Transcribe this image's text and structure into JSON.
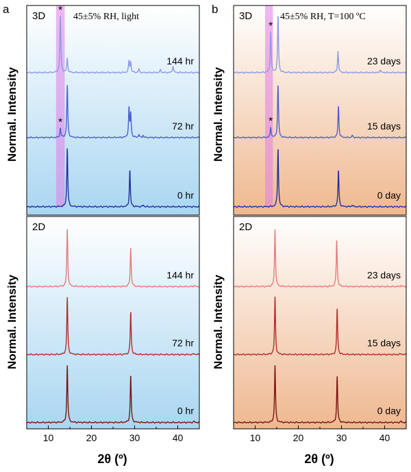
{
  "figure": {
    "panel_letters": [
      "a",
      "b"
    ],
    "xlabel": "2θ (º)",
    "ylabel": "Normal. Intensity",
    "peak_marker": "*"
  },
  "chart_data": [
    {
      "type": "line",
      "panel": "a",
      "subplot": "top",
      "sample": "3D",
      "condition": "45±5% RH, light",
      "xlim": [
        5,
        45
      ],
      "xticks": [
        10,
        20,
        30,
        40
      ],
      "ylabel": "Normal. Intensity",
      "highlight_band": [
        11.8,
        13.8
      ],
      "series": [
        {
          "name": "0 hr",
          "color": "#1f2f9c",
          "baseline": 0.04,
          "height": 0.28,
          "peaks": [
            [
              14.4,
              1.0
            ],
            [
              28.9,
              0.62
            ],
            [
              32.0,
              0.03
            ]
          ]
        },
        {
          "name": "72 hr",
          "color": "#4a5fd0",
          "baseline": 0.37,
          "height": 0.25,
          "peaks": [
            [
              12.8,
              0.18
            ],
            [
              14.4,
              1.0
            ],
            [
              28.7,
              0.55
            ],
            [
              29.1,
              0.45
            ],
            [
              31.0,
              0.06
            ],
            [
              32.0,
              0.04
            ]
          ],
          "star": 12.8
        },
        {
          "name": "144 hr",
          "color": "#8e99e6",
          "baseline": 0.68,
          "height": 0.27,
          "peaks": [
            [
              12.8,
              1.0
            ],
            [
              14.4,
              0.25
            ],
            [
              28.7,
              0.2
            ],
            [
              29.1,
              0.18
            ],
            [
              31.0,
              0.06
            ],
            [
              36.0,
              0.05
            ],
            [
              38.9,
              0.12
            ]
          ],
          "star": 12.8
        }
      ]
    },
    {
      "type": "line",
      "panel": "b",
      "subplot": "top",
      "sample": "3D",
      "condition": "45±5% RH, T=100 ºC",
      "xlim": [
        5,
        45
      ],
      "xticks": [
        10,
        20,
        30,
        40
      ],
      "ylabel": "Normal. Intensity",
      "highlight_band": [
        12.3,
        14.1
      ],
      "series": [
        {
          "name": "0 day",
          "color": "#1f2f9c",
          "baseline": 0.04,
          "height": 0.28,
          "peaks": [
            [
              15.3,
              1.0
            ],
            [
              29.3,
              0.62
            ],
            [
              32.5,
              0.03
            ]
          ]
        },
        {
          "name": "15 days",
          "color": "#4a5fd0",
          "baseline": 0.37,
          "height": 0.25,
          "peaks": [
            [
              13.6,
              0.2
            ],
            [
              15.3,
              1.0
            ],
            [
              29.3,
              0.6
            ],
            [
              32.5,
              0.04
            ]
          ],
          "star": 13.6
        },
        {
          "name": "23 days",
          "color": "#8e99e6",
          "baseline": 0.68,
          "height": 0.27,
          "peaks": [
            [
              13.6,
              0.72
            ],
            [
              15.3,
              1.0
            ],
            [
              29.2,
              0.38
            ],
            [
              39.0,
              0.05
            ]
          ],
          "star": 13.6
        }
      ]
    },
    {
      "type": "line",
      "panel": "a",
      "subplot": "bottom",
      "sample": "2D",
      "xlim": [
        5,
        45
      ],
      "xticks": [
        10,
        20,
        30,
        40
      ],
      "ylabel": "Normal. Intensity",
      "series": [
        {
          "name": "0 hr",
          "color": "#7a1212",
          "baseline": 0.03,
          "height": 0.27,
          "peaks": [
            [
              14.4,
              1.0
            ],
            [
              29.1,
              0.82
            ],
            [
              43.8,
              0.02
            ]
          ]
        },
        {
          "name": "72 hr",
          "color": "#b52a2a",
          "baseline": 0.35,
          "height": 0.27,
          "peaks": [
            [
              14.4,
              1.0
            ],
            [
              29.1,
              0.75
            ],
            [
              43.8,
              0.02
            ]
          ]
        },
        {
          "name": "144 hr",
          "color": "#e47c7c",
          "baseline": 0.67,
          "height": 0.27,
          "peaks": [
            [
              14.4,
              1.0
            ],
            [
              29.1,
              0.68
            ],
            [
              43.8,
              0.02
            ]
          ]
        }
      ]
    },
    {
      "type": "line",
      "panel": "b",
      "subplot": "bottom",
      "sample": "2D",
      "xlim": [
        5,
        45
      ],
      "xticks": [
        10,
        20,
        30,
        40
      ],
      "ylabel": "Normal. Intensity",
      "series": [
        {
          "name": "0 day",
          "color": "#7a1212",
          "baseline": 0.03,
          "height": 0.27,
          "peaks": [
            [
              14.6,
              1.0
            ],
            [
              29.0,
              0.8
            ],
            [
              43.8,
              0.02
            ]
          ]
        },
        {
          "name": "15 days",
          "color": "#b52a2a",
          "baseline": 0.35,
          "height": 0.27,
          "peaks": [
            [
              14.6,
              1.0
            ],
            [
              29.0,
              0.8
            ],
            [
              43.8,
              0.02
            ]
          ]
        },
        {
          "name": "23 days",
          "color": "#e47c7c",
          "baseline": 0.67,
          "height": 0.27,
          "peaks": [
            [
              14.6,
              1.0
            ],
            [
              28.9,
              0.82
            ],
            [
              43.8,
              0.02
            ]
          ]
        }
      ]
    }
  ]
}
